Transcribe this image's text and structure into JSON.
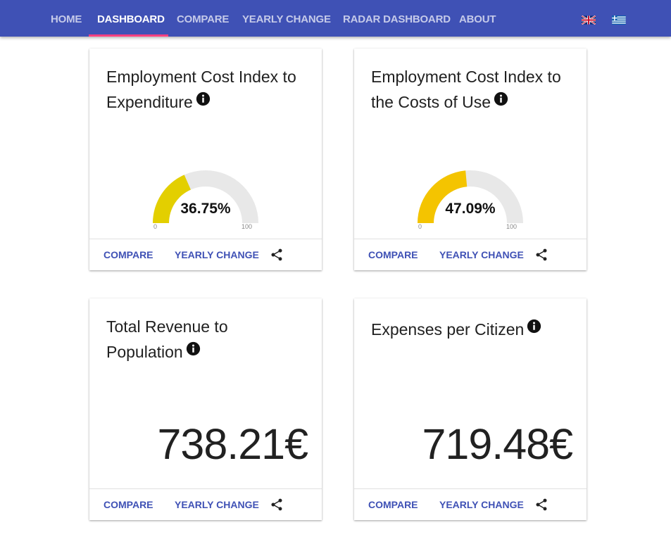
{
  "nav": {
    "items": [
      {
        "label": "HOME",
        "active": false
      },
      {
        "label": "DASHBOARD",
        "active": true
      },
      {
        "label": "COMPARE",
        "active": false
      },
      {
        "label": "YEARLY CHANGE",
        "active": false
      },
      {
        "label": "RADAR DASHBOARD",
        "active": false
      },
      {
        "label": "ABOUT",
        "active": false
      }
    ],
    "flags": [
      "uk-flag-icon",
      "greece-flag-icon"
    ]
  },
  "colors": {
    "navbar": "#3f51b5",
    "indicator": "#ff4081",
    "action": "#3f51b5",
    "gauge_track": "#e8e8e8",
    "gauge1_fill": "#e3cf00",
    "gauge2_fill": "#f4c400"
  },
  "cards": [
    {
      "title": "Employment Cost Index to Expenditure",
      "type": "gauge",
      "gauge": {
        "value": 36.75,
        "display": "36.75%",
        "min": "0",
        "max": "100"
      },
      "actions": {
        "compare": "COMPARE",
        "yearly_change": "YEARLY CHANGE"
      }
    },
    {
      "title": "Employment Cost Index to the Costs of Use",
      "type": "gauge",
      "gauge": {
        "value": 47.09,
        "display": "47.09%",
        "min": "0",
        "max": "100"
      },
      "actions": {
        "compare": "COMPARE",
        "yearly_change": "YEARLY CHANGE"
      }
    },
    {
      "title": "Total Revenue to Population",
      "type": "value",
      "value": "738.21€",
      "actions": {
        "compare": "COMPARE",
        "yearly_change": "YEARLY CHANGE"
      }
    },
    {
      "title": "Expenses per Citizen",
      "type": "value",
      "value": "719.48€",
      "actions": {
        "compare": "COMPARE",
        "yearly_change": "YEARLY CHANGE"
      }
    }
  ]
}
